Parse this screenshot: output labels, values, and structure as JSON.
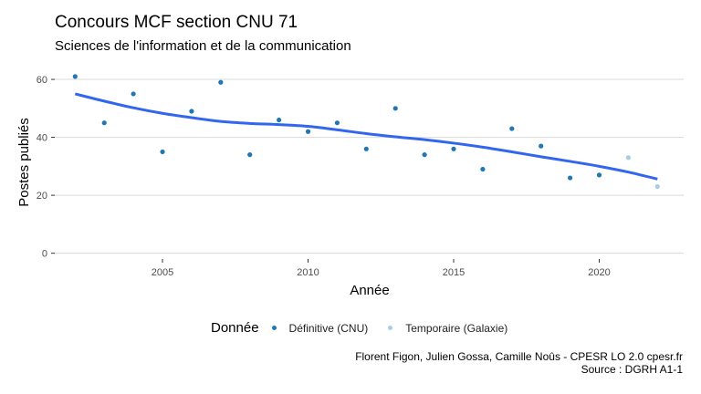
{
  "chart_data": {
    "type": "scatter",
    "title": "Concours MCF section CNU 71",
    "subtitle": "Sciences de l'information et de la communication",
    "xlabel": "Année",
    "ylabel": "Postes publiés",
    "xlim": [
      2001.3,
      2022.9
    ],
    "ylim": [
      -2,
      66
    ],
    "x_ticks": [
      2005,
      2010,
      2015,
      2020
    ],
    "y_ticks": [
      0,
      20,
      40,
      60
    ],
    "grid": true,
    "legend": {
      "title": "Donnée",
      "position": "bottom",
      "entries": [
        {
          "label": "Définitive (CNU)",
          "color": "#1f78b4"
        },
        {
          "label": "Temporaire (Galaxie)",
          "color": "#a6cee3"
        }
      ]
    },
    "series": [
      {
        "name": "Définitive (CNU)",
        "color": "#1f78b4",
        "points": [
          [
            2002,
            61
          ],
          [
            2003,
            45
          ],
          [
            2004,
            55
          ],
          [
            2005,
            35
          ],
          [
            2006,
            49
          ],
          [
            2007,
            59
          ],
          [
            2008,
            34
          ],
          [
            2009,
            46
          ],
          [
            2010,
            42
          ],
          [
            2011,
            45
          ],
          [
            2012,
            36
          ],
          [
            2013,
            50
          ],
          [
            2014,
            34
          ],
          [
            2015,
            36
          ],
          [
            2016,
            29
          ],
          [
            2017,
            43
          ],
          [
            2018,
            37
          ],
          [
            2019,
            26
          ],
          [
            2020,
            27
          ]
        ]
      },
      {
        "name": "Temporaire (Galaxie)",
        "color": "#a6cee3",
        "points": [
          [
            2021,
            33
          ],
          [
            2022,
            23
          ]
        ]
      }
    ],
    "trend": {
      "color": "#3366ee",
      "points": [
        [
          2002,
          55
        ],
        [
          2003,
          52.5
        ],
        [
          2004,
          50.2
        ],
        [
          2005,
          48.3
        ],
        [
          2006,
          46.8
        ],
        [
          2007,
          45.5
        ],
        [
          2008,
          44.8
        ],
        [
          2009,
          44.4
        ],
        [
          2010,
          43.8
        ],
        [
          2011,
          42.6
        ],
        [
          2012,
          41.3
        ],
        [
          2013,
          40.2
        ],
        [
          2014,
          39.2
        ],
        [
          2015,
          38.0
        ],
        [
          2016,
          36.6
        ],
        [
          2017,
          35.0
        ],
        [
          2018,
          33.3
        ],
        [
          2019,
          31.7
        ],
        [
          2020,
          30.0
        ],
        [
          2021,
          28.0
        ],
        [
          2022,
          25.6
        ]
      ]
    }
  },
  "caption": {
    "line1": "Florent Figon, Julien Gossa, Camille Noûs - CPESR LO 2.0 cpesr.fr",
    "line2": "Source : DGRH A1-1"
  }
}
